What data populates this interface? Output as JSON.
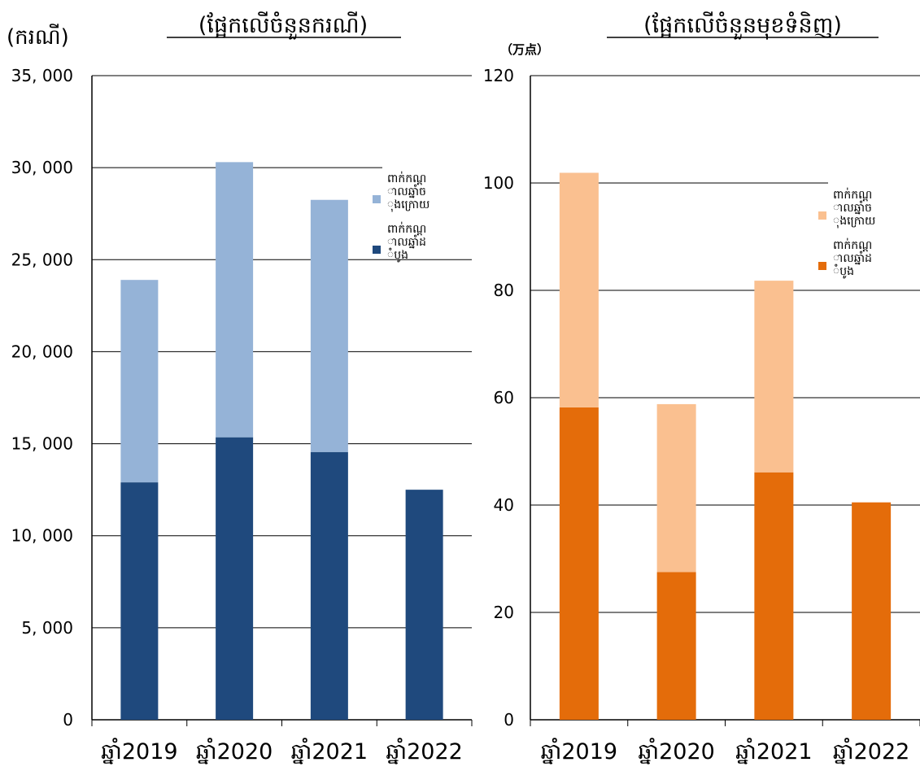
{
  "chart_data": [
    {
      "type": "bar",
      "stacked": true,
      "title": "(ផ្អែកលើចំនួនករណី)",
      "unit_label": "(ករណី)",
      "categories": [
        "ឆ្នាំ2019",
        "ឆ្នាំ2020",
        "ឆ្នាំ2021",
        "ឆ្នាំ2022"
      ],
      "yticks": [
        "0",
        "5, 000",
        "10, 000",
        "15, 000",
        "20, 000",
        "25, 000",
        "30, 000",
        "35, 000"
      ],
      "ylim": [
        0,
        35000
      ],
      "grid": true,
      "legend_position": "top-right",
      "series": [
        {
          "name": "ពាក់កណ្ដាលឆ្នាំដំបូង",
          "color": "#1f497d",
          "values": [
            12900,
            15350,
            14550,
            12500
          ]
        },
        {
          "name": "ពាក់កណ្ដាលឆ្នាំចុងក្រោយ",
          "color": "#95b3d7",
          "values": [
            11000,
            14950,
            13700,
            null
          ]
        }
      ]
    },
    {
      "type": "bar",
      "stacked": true,
      "title": "(ផ្អែកលើចំនួនមុខទំនិញ)",
      "unit_label": "（万点）",
      "categories": [
        "ឆ្នាំ2019",
        "ឆ្នាំ2020",
        "ឆ្នាំ2021",
        "ឆ្នាំ2022"
      ],
      "yticks": [
        "0",
        "20",
        "40",
        "60",
        "80",
        "100",
        "120"
      ],
      "ylim": [
        0,
        120
      ],
      "grid": true,
      "legend_position": "top-right",
      "series": [
        {
          "name": "ពាក់កណ្ដាលឆ្នាំដំបូង",
          "color": "#e46c0a",
          "values": [
            58.2,
            27.5,
            46.1,
            40.5
          ]
        },
        {
          "name": "ពាក់កណ្ដាលឆ្នាំចុងក្រោយ",
          "color": "#fac090",
          "values": [
            43.7,
            31.3,
            35.7,
            null
          ]
        }
      ]
    }
  ]
}
